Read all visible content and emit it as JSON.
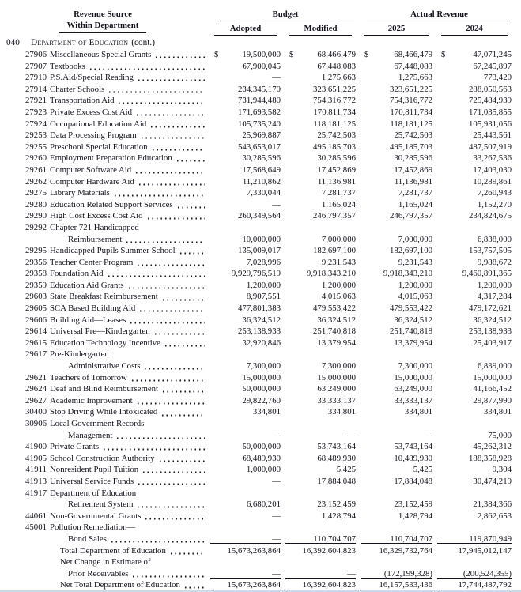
{
  "page": {
    "currency": "$"
  },
  "header": {
    "col1_line1": "Revenue Source",
    "col1_line2": "Within Department",
    "budget_group": "Budget",
    "adopted": "Adopted",
    "modified": "Modified",
    "actual_group": "Actual Revenue",
    "year_2025": "2025",
    "year_2024": "2024"
  },
  "section": {
    "number": "040",
    "name": "Department of Education",
    "cont": "(cont.)"
  },
  "table": {
    "rows": [
      {
        "code": "27906",
        "label": "Miscellaneous Special Grants",
        "indent": 0,
        "leader": true,
        "dollar": true,
        "rule": false,
        "values": [
          "19,500,000",
          "68,466,479",
          "68,466,479",
          "47,071,245"
        ]
      },
      {
        "code": "27907",
        "label": "Textbooks",
        "indent": 0,
        "leader": true,
        "dollar": false,
        "rule": false,
        "values": [
          "67,900,045",
          "67,448,083",
          "67,448,083",
          "67,245,897"
        ]
      },
      {
        "code": "27910",
        "label": "P.S.Aid/Special Reading",
        "indent": 0,
        "leader": true,
        "dollar": false,
        "rule": false,
        "values": [
          "—",
          "1,275,663",
          "1,275,663",
          "773,420"
        ]
      },
      {
        "code": "27914",
        "label": "Charter Schools",
        "indent": 0,
        "leader": true,
        "dollar": false,
        "rule": false,
        "values": [
          "234,345,170",
          "323,651,225",
          "323,651,225",
          "288,050,563"
        ]
      },
      {
        "code": "27921",
        "label": "Transportation Aid",
        "indent": 0,
        "leader": true,
        "dollar": false,
        "rule": false,
        "values": [
          "731,944,480",
          "754,316,772",
          "754,316,772",
          "725,484,939"
        ]
      },
      {
        "code": "27923",
        "label": "Private Excess Cost Aid",
        "indent": 0,
        "leader": true,
        "dollar": false,
        "rule": false,
        "values": [
          "171,693,582",
          "170,811,734",
          "170,811,734",
          "171,035,855"
        ]
      },
      {
        "code": "27924",
        "label": "Occupational Education Aid",
        "indent": 0,
        "leader": true,
        "dollar": false,
        "rule": false,
        "values": [
          "105,735,240",
          "118,181,125",
          "118,181,125",
          "105,931,056"
        ]
      },
      {
        "code": "29253",
        "label": "Data Processing Program",
        "indent": 0,
        "leader": true,
        "dollar": false,
        "rule": false,
        "values": [
          "25,969,887",
          "25,742,503",
          "25,742,503",
          "25,443,561"
        ]
      },
      {
        "code": "29255",
        "label": "Preschool Special Education",
        "indent": 0,
        "leader": true,
        "dollar": false,
        "rule": false,
        "values": [
          "543,653,017",
          "495,185,703",
          "495,185,703",
          "487,507,919"
        ]
      },
      {
        "code": "29260",
        "label": "Employment Preparation Education",
        "indent": 0,
        "leader": true,
        "dollar": false,
        "rule": false,
        "values": [
          "30,285,596",
          "30,285,596",
          "30,285,596",
          "33,267,536"
        ]
      },
      {
        "code": "29261",
        "label": "Computer Software Aid",
        "indent": 0,
        "leader": true,
        "dollar": false,
        "rule": false,
        "values": [
          "17,568,649",
          "17,452,869",
          "17,452,869",
          "17,403,030"
        ]
      },
      {
        "code": "29262",
        "label": "Computer Hardware Aid",
        "indent": 0,
        "leader": true,
        "dollar": false,
        "rule": false,
        "values": [
          "11,210,862",
          "11,136,981",
          "11,136,981",
          "10,289,861"
        ]
      },
      {
        "code": "29275",
        "label": "Library Materials",
        "indent": 0,
        "leader": true,
        "dollar": false,
        "rule": false,
        "values": [
          "7,330,044",
          "7,281,737",
          "7,281,737",
          "7,260,943"
        ]
      },
      {
        "code": "29280",
        "label": "Education Related Support Services",
        "indent": 0,
        "leader": true,
        "dollar": false,
        "rule": false,
        "values": [
          "—",
          "1,165,024",
          "1,165,024",
          "1,152,270"
        ]
      },
      {
        "code": "29290",
        "label": "High Cost Excess Cost Aid",
        "indent": 0,
        "leader": true,
        "dollar": false,
        "rule": false,
        "values": [
          "260,349,564",
          "246,797,357",
          "246,797,357",
          "234,824,675"
        ]
      },
      {
        "code": "29292",
        "label": "Chapter 721 Handicapped",
        "indent": 0,
        "leader": false,
        "dollar": false,
        "rule": false,
        "values": null
      },
      {
        "code": "",
        "label": "Reimbursement",
        "indent": 2,
        "leader": true,
        "dollar": false,
        "rule": false,
        "values": [
          "10,000,000",
          "7,000,000",
          "7,000,000",
          "6,838,000"
        ]
      },
      {
        "code": "29295",
        "label": "Handicapped Pupils Summer School",
        "indent": 0,
        "leader": true,
        "dollar": false,
        "rule": false,
        "values": [
          "135,009,017",
          "182,697,100",
          "182,697,100",
          "153,757,505"
        ]
      },
      {
        "code": "29356",
        "label": "Teacher Center Program",
        "indent": 0,
        "leader": true,
        "dollar": false,
        "rule": false,
        "values": [
          "7,028,996",
          "9,231,543",
          "9,231,543",
          "9,988,672"
        ]
      },
      {
        "code": "29358",
        "label": "Foundation Aid",
        "indent": 0,
        "leader": true,
        "dollar": false,
        "rule": false,
        "values": [
          "9,929,796,519",
          "9,918,343,210",
          "9,918,343,210",
          "9,460,891,365"
        ]
      },
      {
        "code": "29359",
        "label": "Education Aid Grants",
        "indent": 0,
        "leader": true,
        "dollar": false,
        "rule": false,
        "values": [
          "1,200,000",
          "1,200,000",
          "1,200,000",
          "1,200,000"
        ]
      },
      {
        "code": "29603",
        "label": "State Breakfast Reimbursement",
        "indent": 0,
        "leader": true,
        "dollar": false,
        "rule": false,
        "values": [
          "8,907,551",
          "4,015,063",
          "4,015,063",
          "4,317,284"
        ]
      },
      {
        "code": "29605",
        "label": "SCA Based Building Aid",
        "indent": 0,
        "leader": true,
        "dollar": false,
        "rule": false,
        "values": [
          "477,801,383",
          "479,553,422",
          "479,553,422",
          "479,172,621"
        ]
      },
      {
        "code": "29606",
        "label": "Building Aid—Leases",
        "indent": 0,
        "leader": true,
        "dollar": false,
        "rule": false,
        "values": [
          "36,324,512",
          "36,324,512",
          "36,324,512",
          "36,324,512"
        ]
      },
      {
        "code": "29614",
        "label": "Universal Pre—Kindergarten",
        "indent": 0,
        "leader": true,
        "dollar": false,
        "rule": false,
        "values": [
          "253,138,933",
          "251,740,818",
          "251,740,818",
          "253,138,933"
        ]
      },
      {
        "code": "29615",
        "label": "Education Technology Incentive",
        "indent": 0,
        "leader": true,
        "dollar": false,
        "rule": false,
        "values": [
          "32,920,846",
          "13,379,954",
          "13,379,954",
          "25,403,917"
        ]
      },
      {
        "code": "29617",
        "label": "Pre-Kindergarten",
        "indent": 0,
        "leader": false,
        "dollar": false,
        "rule": false,
        "values": null
      },
      {
        "code": "",
        "label": "Administrative Costs",
        "indent": 2,
        "leader": true,
        "dollar": false,
        "rule": false,
        "values": [
          "7,300,000",
          "7,300,000",
          "7,300,000",
          "6,839,000"
        ]
      },
      {
        "code": "29621",
        "label": "Teachers of Tomorrow",
        "indent": 0,
        "leader": true,
        "dollar": false,
        "rule": false,
        "values": [
          "15,000,000",
          "15,000,000",
          "15,000,000",
          "15,000,000"
        ]
      },
      {
        "code": "29624",
        "label": "Deaf and Blind Reimbursement",
        "indent": 0,
        "leader": true,
        "dollar": false,
        "rule": false,
        "values": [
          "50,000,000",
          "63,249,000",
          "63,249,000",
          "41,166,452"
        ]
      },
      {
        "code": "29627",
        "label": "Academic Improvement",
        "indent": 0,
        "leader": true,
        "dollar": false,
        "rule": false,
        "values": [
          "29,822,760",
          "33,333,137",
          "33,333,137",
          "29,877,990"
        ]
      },
      {
        "code": "30400",
        "label": "Stop Driving While Intoxicated",
        "indent": 0,
        "leader": true,
        "dollar": false,
        "rule": false,
        "values": [
          "334,801",
          "334,801",
          "334,801",
          "334,801"
        ]
      },
      {
        "code": "30906",
        "label": "Local Government Records",
        "indent": 0,
        "leader": false,
        "dollar": false,
        "rule": false,
        "values": null
      },
      {
        "code": "",
        "label": "Management",
        "indent": 2,
        "leader": true,
        "dollar": false,
        "rule": false,
        "values": [
          "—",
          "—",
          "—",
          "75,000"
        ]
      },
      {
        "code": "41900",
        "label": "Private Grants",
        "indent": 0,
        "leader": true,
        "dollar": false,
        "rule": false,
        "values": [
          "50,000,000",
          "53,743,164",
          "53,743,164",
          "45,262,312"
        ]
      },
      {
        "code": "41905",
        "label": "School Construction Authority",
        "indent": 0,
        "leader": true,
        "dollar": false,
        "rule": false,
        "values": [
          "68,489,930",
          "68,489,930",
          "10,489,930",
          "188,358,928"
        ]
      },
      {
        "code": "41911",
        "label": "Nonresident Pupil Tuition",
        "indent": 0,
        "leader": true,
        "dollar": false,
        "rule": false,
        "values": [
          "1,000,000",
          "5,425",
          "5,425",
          "9,304"
        ]
      },
      {
        "code": "41913",
        "label": "Universal Service Funds",
        "indent": 0,
        "leader": true,
        "dollar": false,
        "rule": false,
        "values": [
          "—",
          "17,884,048",
          "17,884,048",
          "30,474,219"
        ]
      },
      {
        "code": "41917",
        "label": "Department of Education",
        "indent": 0,
        "leader": false,
        "dollar": false,
        "rule": false,
        "values": null
      },
      {
        "code": "",
        "label": "Retirement System",
        "indent": 2,
        "leader": true,
        "dollar": false,
        "rule": false,
        "values": [
          "6,680,201",
          "23,152,459",
          "23,152,459",
          "21,384,366"
        ]
      },
      {
        "code": "44061",
        "label": "Non-Governmental Grants",
        "indent": 0,
        "leader": true,
        "dollar": false,
        "rule": false,
        "values": [
          "—",
          "1,428,794",
          "1,428,794",
          "2,862,653"
        ]
      },
      {
        "code": "45001",
        "label": "Pollution Remediation—",
        "indent": 0,
        "leader": false,
        "dollar": false,
        "rule": false,
        "values": null
      },
      {
        "code": "",
        "label": "Bond Sales",
        "indent": 2,
        "leader": true,
        "dollar": false,
        "rule": true,
        "values": [
          "—",
          "110,704,707",
          "110,704,707",
          "119,870,949"
        ]
      },
      {
        "code": "",
        "label": "Total Department of Education",
        "indent": 1,
        "leader": true,
        "dollar": false,
        "rule": false,
        "values": [
          "15,673,263,864",
          "16,392,604,823",
          "16,329,732,764",
          "17,945,012,147"
        ]
      },
      {
        "code": "",
        "label": "Net Change in Estimate of",
        "indent": 1,
        "leader": false,
        "dollar": false,
        "rule": false,
        "values": null
      },
      {
        "code": "",
        "label": "Prior Receivables",
        "indent": 2,
        "leader": true,
        "dollar": false,
        "rule": true,
        "values": [
          "—",
          "—",
          "(172,199,328)",
          "(200,524,355)"
        ]
      },
      {
        "code": "",
        "label": "Net Total Department of Education",
        "indent": 1,
        "leader": true,
        "dollar": false,
        "rule": true,
        "values": [
          "15,673,263,864",
          "16,392,604,823",
          "16,157,533,436",
          "17,744,487,792"
        ]
      }
    ]
  }
}
